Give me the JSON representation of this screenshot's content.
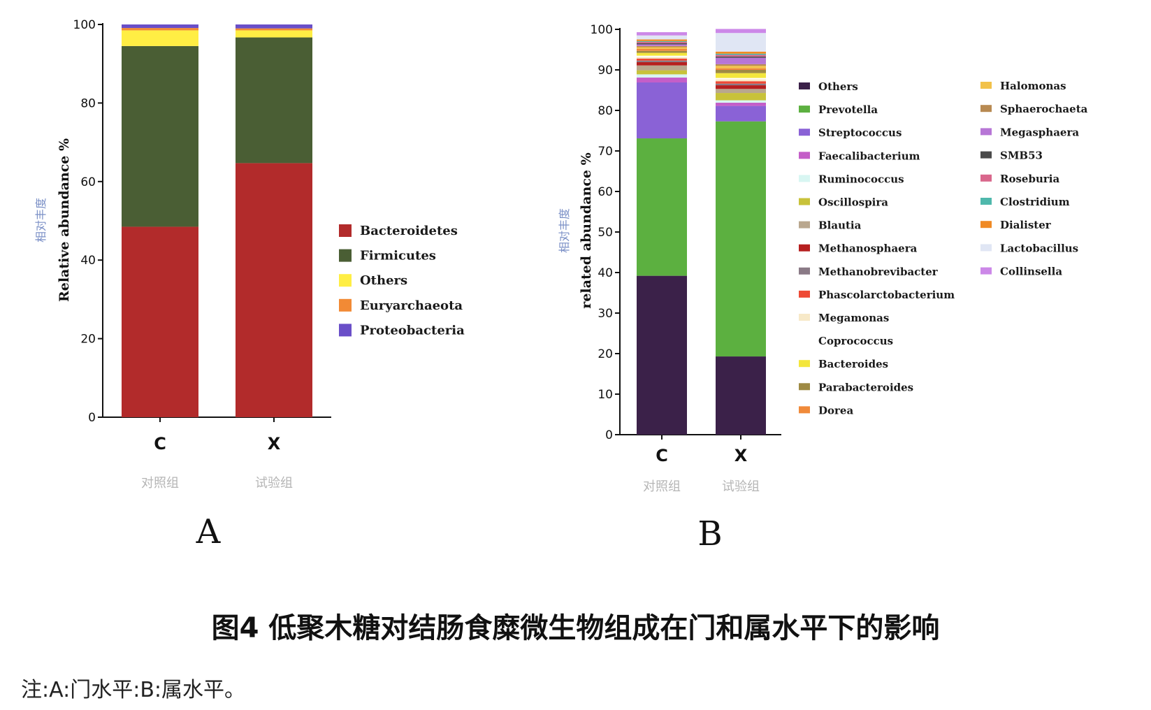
{
  "chart_data": [
    {
      "type": "bar",
      "stacked": true,
      "panel_label": "A",
      "categories": [
        "C",
        "X"
      ],
      "category_sublabels": [
        "对照组",
        "试验组"
      ],
      "ylabel": "Relative abundance %",
      "ylabel_cn": "相对丰度",
      "ylim": [
        0,
        100
      ],
      "yticks": [
        0,
        20,
        40,
        60,
        80,
        100
      ],
      "legend_position": "right",
      "series": [
        {
          "name": "Bacteroidetes",
          "color": "#b22b2b",
          "values": [
            48.5,
            64.7
          ]
        },
        {
          "name": "Firmicutes",
          "color": "#4a5e34",
          "values": [
            46.0,
            32.0
          ]
        },
        {
          "name": "Others",
          "color": "#ffee44",
          "values": [
            4.0,
            1.8
          ]
        },
        {
          "name": "Euryarchaeota",
          "color": "#f28a35",
          "values": [
            0.6,
            0.5
          ]
        },
        {
          "name": "Proteobacteria",
          "color": "#6a4fc8",
          "values": [
            0.9,
            1.0
          ]
        }
      ]
    },
    {
      "type": "bar",
      "stacked": true,
      "panel_label": "B",
      "categories": [
        "C",
        "X"
      ],
      "category_sublabels": [
        "对照组",
        "试验组"
      ],
      "ylabel": "related abundance %",
      "ylabel_cn": "相对丰度",
      "ylim": [
        0,
        100
      ],
      "yticks": [
        0,
        10,
        20,
        30,
        40,
        50,
        60,
        70,
        80,
        90,
        100
      ],
      "legend_position": "right",
      "series": [
        {
          "name": "Others",
          "color": "#3b2149",
          "values": [
            39.2,
            19.3
          ]
        },
        {
          "name": "Prevotella",
          "color": "#5cb040",
          "values": [
            33.9,
            58.0
          ]
        },
        {
          "name": "Streptococcus",
          "color": "#8a62d6",
          "values": [
            13.8,
            3.8
          ]
        },
        {
          "name": "Faecalibacterium",
          "color": "#c45ec8",
          "values": [
            1.2,
            0.8
          ]
        },
        {
          "name": "Ruminococcus",
          "color": "#d8f6f2",
          "values": [
            0.8,
            0.6
          ]
        },
        {
          "name": "Oscillospira",
          "color": "#c8c23a",
          "values": [
            1.0,
            1.8
          ]
        },
        {
          "name": "Blautia",
          "color": "#b9a78e",
          "values": [
            1.2,
            1.0
          ]
        },
        {
          "name": "Methanosphaera",
          "color": "#b61f1f",
          "values": [
            0.8,
            0.9
          ]
        },
        {
          "name": "Methanobrevibacter",
          "color": "#8a7a86",
          "values": [
            0.4,
            0.4
          ]
        },
        {
          "name": "Phascolarctobacterium",
          "color": "#ee4a35",
          "values": [
            0.5,
            0.6
          ]
        },
        {
          "name": "Megamonas",
          "color": "#f7e9c8",
          "values": [
            0.4,
            0.5
          ]
        },
        {
          "name": "Coprococcus",
          "color": "#ffffff",
          "values": [
            0.3,
            0.3
          ]
        },
        {
          "name": "Bacteroides",
          "color": "#f3e63c",
          "values": [
            0.7,
            1.2
          ]
        },
        {
          "name": "Parabacteroides",
          "color": "#9e8a44",
          "values": [
            0.5,
            0.8
          ]
        },
        {
          "name": "Dorea",
          "color": "#f08a3a",
          "values": [
            0.5,
            0.4
          ]
        },
        {
          "name": "Halomonas",
          "color": "#f2c24a",
          "values": [
            0.4,
            0.6
          ]
        },
        {
          "name": "Sphaerochaeta",
          "color": "#b88a52",
          "values": [
            0.3,
            0.4
          ]
        },
        {
          "name": "Megasphaera",
          "color": "#b776d6",
          "values": [
            0.4,
            1.6
          ]
        },
        {
          "name": "SMB53",
          "color": "#4a4a4a",
          "values": [
            0.3,
            0.3
          ]
        },
        {
          "name": "Roseburia",
          "color": "#d9678c",
          "values": [
            0.3,
            0.4
          ]
        },
        {
          "name": "Clostridium",
          "color": "#4fb8ac",
          "values": [
            0.2,
            0.3
          ]
        },
        {
          "name": "Dialister",
          "color": "#f08a24",
          "values": [
            0.4,
            0.5
          ]
        },
        {
          "name": "Lactobacillus",
          "color": "#e0e6f4",
          "values": [
            1.0,
            4.6
          ]
        },
        {
          "name": "Collinsella",
          "color": "#cc88e8",
          "values": [
            0.8,
            1.0
          ]
        }
      ]
    }
  ],
  "caption": "图4 低聚木糖对结肠食糜微生物组成在门和属水平下的影响",
  "note": "注:A:门水平:B:属水平。"
}
